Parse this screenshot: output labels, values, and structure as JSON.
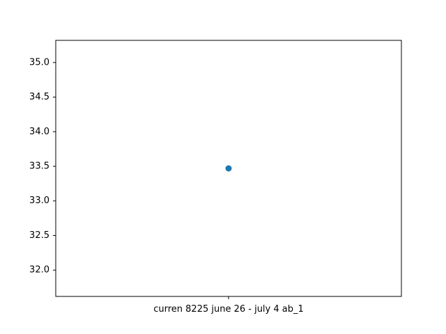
{
  "chart_data": {
    "type": "scatter",
    "title": "",
    "xlabel": "",
    "ylabel": "",
    "categories": [
      "curren 8225 june 26 - july 4 ab_1"
    ],
    "series": [
      {
        "values": [
          33.47
        ],
        "color": "#1f77b4"
      }
    ],
    "ylim": [
      31.62,
      35.32
    ],
    "yticks": [
      32.0,
      32.5,
      33.0,
      33.5,
      34.0,
      34.5,
      35.0
    ],
    "ytick_labels": [
      "32.0",
      "32.5",
      "33.0",
      "33.5",
      "34.0",
      "34.5",
      "35.0"
    ],
    "grid": false,
    "legend": "none"
  }
}
